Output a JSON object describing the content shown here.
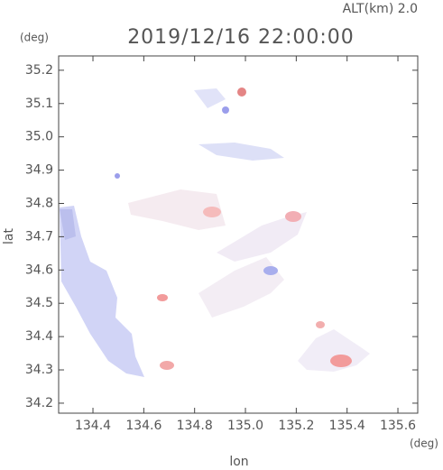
{
  "chart_data": {
    "type": "map",
    "title": "2019/12/16 22:00:00",
    "subtitle": "ALT(km)  2.0",
    "x_label": "lon",
    "x_unit": "(deg)",
    "y_label": "lat",
    "y_unit": "(deg)",
    "xlim": [
      134.265,
      135.678
    ],
    "ylim": [
      34.17,
      35.243
    ],
    "xticks": [
      134.4,
      134.6,
      134.8,
      {
        "value": 135,
        "label": "135.0"
      },
      135.2,
      135.4,
      135.6
    ],
    "yticks": [
      34.2,
      34.3,
      34.4,
      34.5,
      34.6,
      34.7,
      34.8,
      34.9,
      {
        "value": 35,
        "label": "35.0"
      },
      35.1,
      35.2
    ]
  }
}
